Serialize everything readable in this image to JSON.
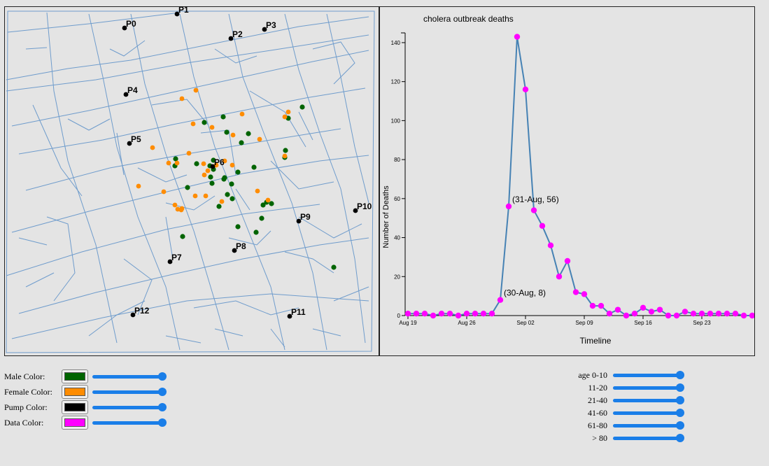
{
  "map": {
    "pumps": [
      {
        "label": "P0"
      },
      {
        "label": "P1"
      },
      {
        "label": "P2"
      },
      {
        "label": "P3"
      },
      {
        "label": "P4"
      },
      {
        "label": "P5"
      },
      {
        "label": "P6"
      },
      {
        "label": "P7"
      },
      {
        "label": "P8"
      },
      {
        "label": "P9"
      },
      {
        "label": "P10"
      },
      {
        "label": "P11"
      },
      {
        "label": "P12"
      }
    ],
    "male_dot_count": 34,
    "female_dot_count": 31
  },
  "controls": [
    {
      "label": "Male Color:",
      "color": "#006400",
      "level": 1.0
    },
    {
      "label": "Female Color:",
      "color": "#ff8c00",
      "level": 1.0
    },
    {
      "label": "Pump Color:",
      "color": "#000000",
      "level": 1.0
    },
    {
      "label": "Data Color:",
      "color": "#ff00ff",
      "level": 1.0
    }
  ],
  "age_filters": [
    {
      "label": "age 0-10",
      "level": 1.0
    },
    {
      "label": "11-20",
      "level": 1.0
    },
    {
      "label": "21-40",
      "level": 1.0
    },
    {
      "label": "41-60",
      "level": 1.0
    },
    {
      "label": "61-80",
      "level": 1.0
    },
    {
      "label": "> 80",
      "level": 1.0
    }
  ],
  "chart_data": {
    "type": "line",
    "title": "cholera outbreak deaths",
    "xlabel": "Timeline",
    "ylabel": "Number of Deaths",
    "x_tick_labels": [
      "Aug 19",
      "Aug 26",
      "Sep 02",
      "Sep 09",
      "Sep 16",
      "Sep 23"
    ],
    "y_ticks": [
      0,
      20,
      40,
      60,
      80,
      100,
      120,
      140
    ],
    "ylim": [
      0,
      145
    ],
    "x_start_label": "Aug 19",
    "line_color": "#4682b4",
    "point_color": "#ff00ff",
    "series": [
      {
        "values": [
          1,
          1,
          1,
          0,
          1,
          1,
          0,
          1,
          1,
          1,
          1,
          8,
          56,
          143,
          116,
          54,
          46,
          36,
          20,
          28,
          12,
          11,
          5,
          5,
          1,
          3,
          0,
          1,
          4,
          2,
          3,
          0,
          0,
          2,
          1,
          1,
          1,
          1,
          1,
          1,
          0,
          0
        ]
      }
    ],
    "annotations": [
      {
        "text": "(30-Aug, 8)",
        "index": 11
      },
      {
        "text": "(31-Aug, 56)",
        "index": 12
      }
    ]
  }
}
